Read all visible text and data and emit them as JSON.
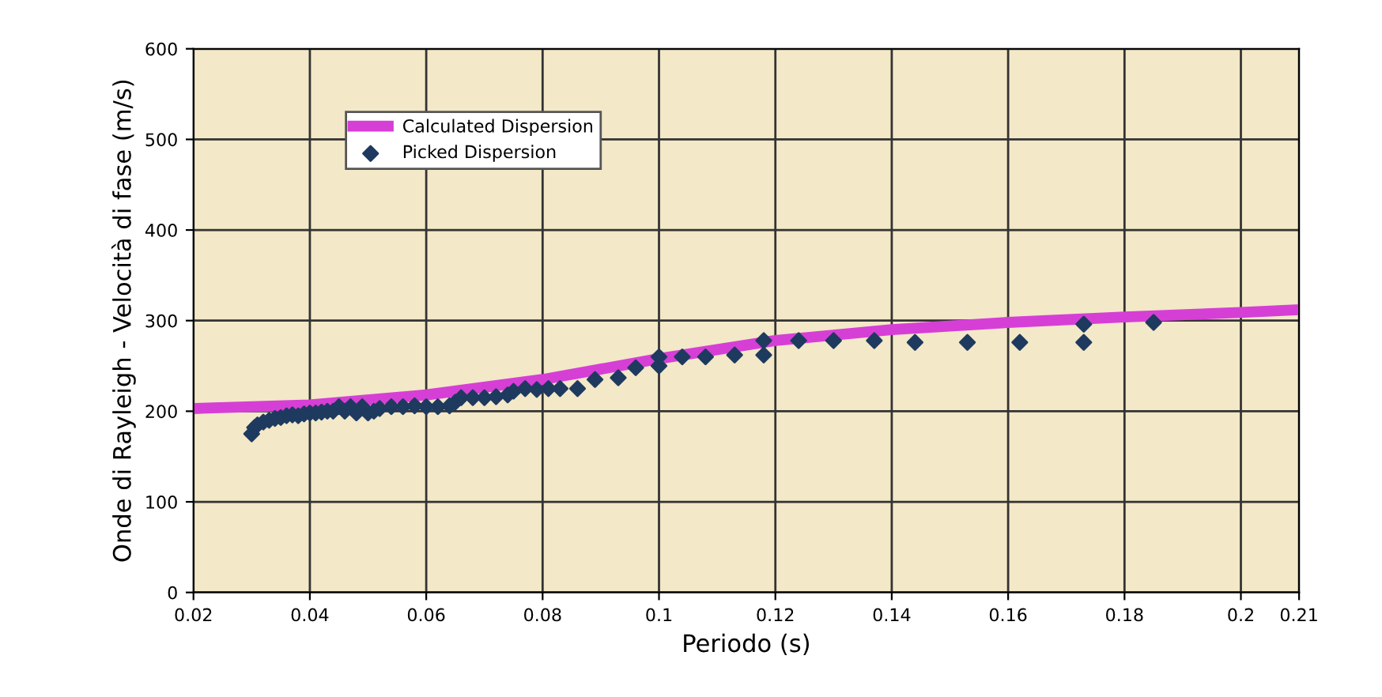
{
  "chart_data": {
    "type": "scatter",
    "xlabel": "Periodo (s)",
    "ylabel": "Onde di Rayleigh - Velocità di fase (m/s)",
    "xlim": [
      0.02,
      0.21
    ],
    "xticks": [
      0.02,
      0.04,
      0.06,
      0.08,
      0.1,
      0.12,
      0.14,
      0.16,
      0.18,
      0.2,
      0.21
    ],
    "ylim": [
      0,
      600
    ],
    "yticks": [
      0,
      100,
      200,
      300,
      400,
      500,
      600
    ],
    "grid": true,
    "legend": "top left",
    "series": [
      {
        "name": "Calculated Dispersion",
        "type": "line",
        "color": "#d63fd6",
        "marker": "none",
        "line_style": "solid",
        "x": [
          0.02,
          0.04,
          0.06,
          0.08,
          0.1,
          0.12,
          0.14,
          0.16,
          0.18,
          0.2,
          0.21
        ],
        "values": [
          203,
          207,
          218,
          235,
          258,
          278,
          290,
          298,
          304,
          309,
          312
        ]
      },
      {
        "name": "Picked Dispersion",
        "color": "#1f3a5f",
        "marker": "diamond",
        "x": [
          0.03,
          0.0305,
          0.031,
          0.032,
          0.033,
          0.034,
          0.035,
          0.036,
          0.037,
          0.038,
          0.039,
          0.04,
          0.041,
          0.042,
          0.043,
          0.044,
          0.045,
          0.046,
          0.047,
          0.048,
          0.049,
          0.05,
          0.051,
          0.052,
          0.054,
          0.056,
          0.058,
          0.06,
          0.062,
          0.064,
          0.065,
          0.066,
          0.068,
          0.07,
          0.072,
          0.074,
          0.075,
          0.077,
          0.079,
          0.081,
          0.083,
          0.086,
          0.089,
          0.093,
          0.096,
          0.1,
          0.1,
          0.104,
          0.108,
          0.113,
          0.118,
          0.118,
          0.124,
          0.13,
          0.137,
          0.144,
          0.153,
          0.162,
          0.173,
          0.173,
          0.185
        ],
        "values": [
          175,
          182,
          185,
          188,
          190,
          192,
          193,
          195,
          196,
          195,
          197,
          198,
          198,
          199,
          200,
          200,
          205,
          200,
          205,
          198,
          205,
          198,
          200,
          203,
          205,
          205,
          206,
          205,
          205,
          206,
          210,
          215,
          215,
          215,
          216,
          218,
          222,
          225,
          224,
          225,
          225,
          225,
          235,
          237,
          248,
          250,
          260,
          260,
          260,
          262,
          262,
          278,
          278,
          278,
          278,
          276,
          276,
          276,
          276,
          296,
          298
        ]
      }
    ]
  }
}
